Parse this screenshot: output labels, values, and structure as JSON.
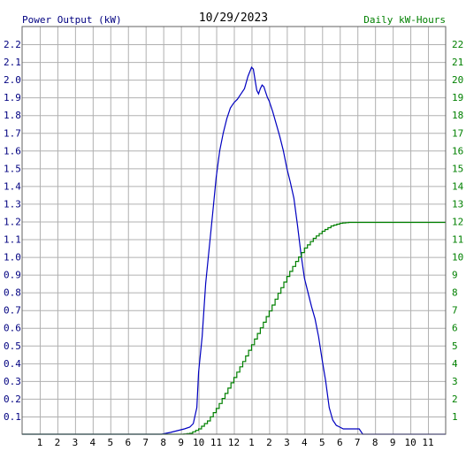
{
  "chart_data": {
    "type": "line",
    "title": "10/29/2023",
    "left_axis_label": "Power Output (kW)",
    "right_axis_label": "Daily kW-Hours",
    "x_ticks": [
      "1",
      "2",
      "3",
      "4",
      "5",
      "6",
      "7",
      "8",
      "9",
      "10",
      "11",
      "12",
      "1",
      "2",
      "3",
      "4",
      "5",
      "6",
      "7",
      "8",
      "9",
      "10",
      "11"
    ],
    "x_range_hours": [
      0,
      24
    ],
    "y_left_range": [
      0,
      2.3
    ],
    "y_left_ticks": [
      "0.1",
      "0.2",
      "0.3",
      "0.4",
      "0.5",
      "0.6",
      "0.7",
      "0.8",
      "0.9",
      "1.0",
      "1.1",
      "1.2",
      "1.3",
      "1.4",
      "1.5",
      "1.6",
      "1.7",
      "1.8",
      "1.9",
      "2.0",
      "2.1",
      "2.2"
    ],
    "y_right_range": [
      0,
      23
    ],
    "y_right_ticks": [
      "1",
      "2",
      "3",
      "4",
      "5",
      "6",
      "7",
      "8",
      "9",
      "10",
      "11",
      "12",
      "13",
      "14",
      "15",
      "16",
      "17",
      "18",
      "19",
      "20",
      "21",
      "22"
    ],
    "grid": true,
    "colors": {
      "power": "#0000c0",
      "energy": "#008000",
      "grid": "#b0b0b0",
      "axis_text": "#000080"
    },
    "series": [
      {
        "axis": "left",
        "x": [
          0,
          7.9,
          8.4,
          8.8,
          9.2,
          9.5,
          9.7,
          9.9,
          10.0,
          10.2,
          10.4,
          10.6,
          10.8,
          11.0,
          11.2,
          11.4,
          11.6,
          11.8,
          12.0,
          12.2,
          12.4,
          12.6,
          12.8,
          13.0,
          13.1,
          13.2,
          13.3,
          13.4,
          13.5,
          13.6,
          13.7,
          13.8,
          13.9,
          14.0,
          14.2,
          14.4,
          14.6,
          14.8,
          15.0,
          15.2,
          15.4,
          15.6,
          15.8,
          16.0,
          16.2,
          16.4,
          16.6,
          16.8,
          17.0,
          17.2,
          17.4,
          17.6,
          17.8,
          18.0,
          18.2,
          18.4,
          18.6,
          18.8,
          19.0,
          19.1,
          19.3,
          19.6,
          20.0,
          24.0
        ],
        "y": [
          0,
          0,
          0.01,
          0.02,
          0.03,
          0.04,
          0.06,
          0.15,
          0.35,
          0.55,
          0.85,
          1.05,
          1.25,
          1.45,
          1.6,
          1.7,
          1.78,
          1.84,
          1.87,
          1.89,
          1.92,
          1.95,
          2.02,
          2.07,
          2.06,
          2.0,
          1.94,
          1.92,
          1.95,
          1.97,
          1.96,
          1.93,
          1.9,
          1.88,
          1.82,
          1.75,
          1.68,
          1.6,
          1.5,
          1.42,
          1.33,
          1.18,
          1.02,
          0.88,
          0.8,
          0.72,
          0.65,
          0.55,
          0.42,
          0.3,
          0.15,
          0.08,
          0.05,
          0.04,
          0.03,
          0.03,
          0.03,
          0.03,
          0.03,
          0.03,
          0,
          0,
          0,
          0
        ]
      },
      {
        "axis": "right",
        "x": [
          0,
          9.0,
          9.5,
          10.0,
          10.5,
          11.0,
          11.5,
          12.0,
          12.5,
          13.0,
          13.5,
          14.0,
          14.5,
          15.0,
          15.5,
          16.0,
          16.5,
          17.0,
          17.5,
          18.0,
          18.5,
          19.0,
          24.0
        ],
        "y": [
          0,
          0,
          0.05,
          0.3,
          0.75,
          1.45,
          2.3,
          3.2,
          4.1,
          5.05,
          6.0,
          6.95,
          7.95,
          8.9,
          9.75,
          10.5,
          11.05,
          11.45,
          11.75,
          11.9,
          11.95,
          11.95,
          11.95
        ]
      }
    ]
  }
}
